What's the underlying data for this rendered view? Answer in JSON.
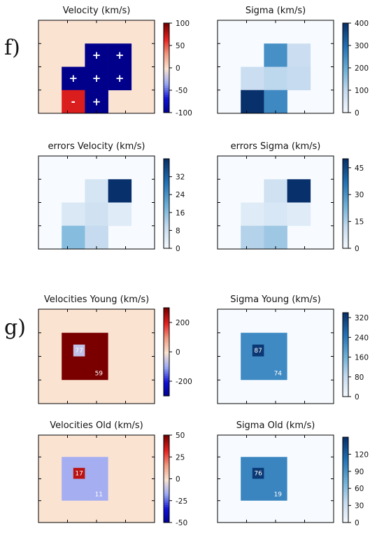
{
  "section_labels": [
    "f)",
    "g)"
  ],
  "colors": {
    "diverging": [
      "#00008b",
      "#1010d8",
      "#9aa8f4",
      "#fbe3d2",
      "#f29a80",
      "#e52020",
      "#7a0000"
    ],
    "sequential": [
      "#f7fbff",
      "#c6dbef",
      "#6baed6",
      "#2171b5",
      "#08306b"
    ],
    "frame": "#000000"
  },
  "chart_data": [
    {
      "type": "heatmap",
      "title": "Velocity (km/s)",
      "grid": [
        5,
        4
      ],
      "background_value": 0,
      "cells": [
        {
          "col": 2,
          "row": 1,
          "value": -100,
          "label": "+"
        },
        {
          "col": 3,
          "row": 1,
          "value": -100,
          "label": "+"
        },
        {
          "col": 1,
          "row": 2,
          "value": -100,
          "label": "+"
        },
        {
          "col": 2,
          "row": 2,
          "value": -100,
          "label": "+"
        },
        {
          "col": 3,
          "row": 2,
          "value": -100,
          "label": "+"
        },
        {
          "col": 1,
          "row": 3,
          "value": 70,
          "label": "-"
        },
        {
          "col": 2,
          "row": 3,
          "value": -100,
          "label": "+"
        }
      ],
      "colormap": "diverging",
      "colorbar": {
        "range": [
          -100,
          100
        ],
        "ticks": [
          100,
          50,
          0,
          -50,
          -100
        ]
      }
    },
    {
      "type": "heatmap",
      "title": "Sigma (km/s)",
      "grid": [
        5,
        4
      ],
      "background_value": 0,
      "cells": [
        {
          "col": 2,
          "row": 1,
          "value": 250
        },
        {
          "col": 3,
          "row": 1,
          "value": 90
        },
        {
          "col": 1,
          "row": 2,
          "value": 90
        },
        {
          "col": 2,
          "row": 2,
          "value": 110
        },
        {
          "col": 3,
          "row": 2,
          "value": 100
        },
        {
          "col": 1,
          "row": 3,
          "value": 400
        },
        {
          "col": 2,
          "row": 3,
          "value": 260
        }
      ],
      "colormap": "sequential",
      "colorbar": {
        "range": [
          0,
          400
        ],
        "ticks": [
          400,
          300,
          200,
          100,
          0
        ]
      }
    },
    {
      "type": "heatmap",
      "title": "errors Velocity (km/s)",
      "grid": [
        5,
        4
      ],
      "background_value": 0,
      "cells": [
        {
          "col": 2,
          "row": 1,
          "value": 7
        },
        {
          "col": 3,
          "row": 1,
          "value": 40
        },
        {
          "col": 1,
          "row": 2,
          "value": 6
        },
        {
          "col": 2,
          "row": 2,
          "value": 8
        },
        {
          "col": 3,
          "row": 2,
          "value": 5
        },
        {
          "col": 1,
          "row": 3,
          "value": 17
        },
        {
          "col": 2,
          "row": 3,
          "value": 10
        }
      ],
      "colormap": "sequential",
      "colorbar": {
        "range": [
          0,
          40
        ],
        "ticks": [
          32,
          24,
          16,
          8,
          0
        ]
      }
    },
    {
      "type": "heatmap",
      "title": "errors Sigma (km/s)",
      "grid": [
        5,
        4
      ],
      "background_value": 0,
      "cells": [
        {
          "col": 2,
          "row": 1,
          "value": 10
        },
        {
          "col": 3,
          "row": 1,
          "value": 50
        },
        {
          "col": 1,
          "row": 2,
          "value": 6
        },
        {
          "col": 2,
          "row": 2,
          "value": 8
        },
        {
          "col": 3,
          "row": 2,
          "value": 6
        },
        {
          "col": 1,
          "row": 3,
          "value": 15
        },
        {
          "col": 2,
          "row": 3,
          "value": 18
        }
      ],
      "colormap": "sequential",
      "colorbar": {
        "range": [
          0,
          50
        ],
        "ticks": [
          45,
          30,
          15,
          0
        ]
      }
    },
    {
      "type": "heatmap",
      "title": "Velocities Young (km/s)",
      "grid": [
        5,
        4
      ],
      "background_value": 0,
      "blocks": [
        {
          "col": 1,
          "row": 1,
          "w": 2,
          "h": 2,
          "value": 300,
          "label": "59"
        },
        {
          "col": 1.5,
          "row": 1.5,
          "w": 0.5,
          "h": 0.5,
          "value": -60,
          "label": "77"
        }
      ],
      "colormap": "diverging",
      "colorbar": {
        "range": [
          -300,
          300
        ],
        "ticks": [
          200,
          0,
          -200
        ]
      }
    },
    {
      "type": "heatmap",
      "title": "Sigma Young (km/s)",
      "grid": [
        5,
        4
      ],
      "background_value": 0,
      "blocks": [
        {
          "col": 1,
          "row": 1,
          "w": 2,
          "h": 2,
          "value": 220,
          "label": "74"
        },
        {
          "col": 1.5,
          "row": 1.5,
          "w": 0.5,
          "h": 0.5,
          "value": 330,
          "label": "87"
        }
      ],
      "colormap": "sequential",
      "colorbar": {
        "range": [
          0,
          340
        ],
        "ticks": [
          320,
          240,
          160,
          80,
          0
        ]
      }
    },
    {
      "type": "heatmap",
      "title": "Velocities Old (km/s)",
      "grid": [
        5,
        4
      ],
      "background_value": 0,
      "blocks": [
        {
          "col": 1,
          "row": 1,
          "w": 2,
          "h": 2,
          "value": -15,
          "label": "11"
        },
        {
          "col": 1.5,
          "row": 1.5,
          "w": 0.5,
          "h": 0.5,
          "value": 40,
          "label": "17"
        }
      ],
      "colormap": "diverging",
      "colorbar": {
        "range": [
          -50,
          50
        ],
        "ticks": [
          50,
          25,
          0,
          -25,
          -50
        ]
      }
    },
    {
      "type": "heatmap",
      "title": "Sigma Old (km/s)",
      "grid": [
        5,
        4
      ],
      "background_value": 0,
      "blocks": [
        {
          "col": 1,
          "row": 1,
          "w": 2,
          "h": 2,
          "value": 100,
          "label": "19"
        },
        {
          "col": 1.5,
          "row": 1.5,
          "w": 0.5,
          "h": 0.5,
          "value": 145,
          "label": "76"
        }
      ],
      "colormap": "sequential",
      "colorbar": {
        "range": [
          0,
          150
        ],
        "ticks": [
          120,
          90,
          60,
          30,
          0
        ]
      }
    }
  ]
}
